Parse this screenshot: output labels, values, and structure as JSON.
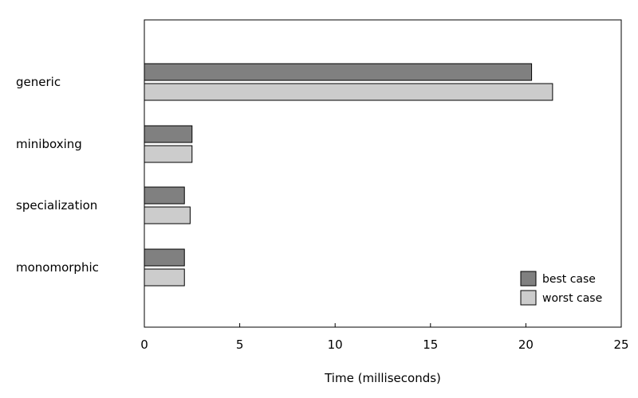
{
  "chart_data": {
    "type": "bar",
    "orientation": "horizontal",
    "categories": [
      "generic",
      "miniboxing",
      "specialization",
      "monomorphic"
    ],
    "series": [
      {
        "name": "best case",
        "color": "#808080",
        "values": [
          20.3,
          2.5,
          2.1,
          2.1
        ]
      },
      {
        "name": "worst case",
        "color": "#cccccc",
        "values": [
          21.4,
          2.5,
          2.4,
          2.1
        ]
      }
    ],
    "xlabel": "Time (milliseconds)",
    "ylabel": "",
    "xlim": [
      0,
      25
    ],
    "xticks": [
      "0",
      "5",
      "10",
      "15",
      "20",
      "25"
    ],
    "grid": false,
    "legend_position": "bottom-right"
  }
}
